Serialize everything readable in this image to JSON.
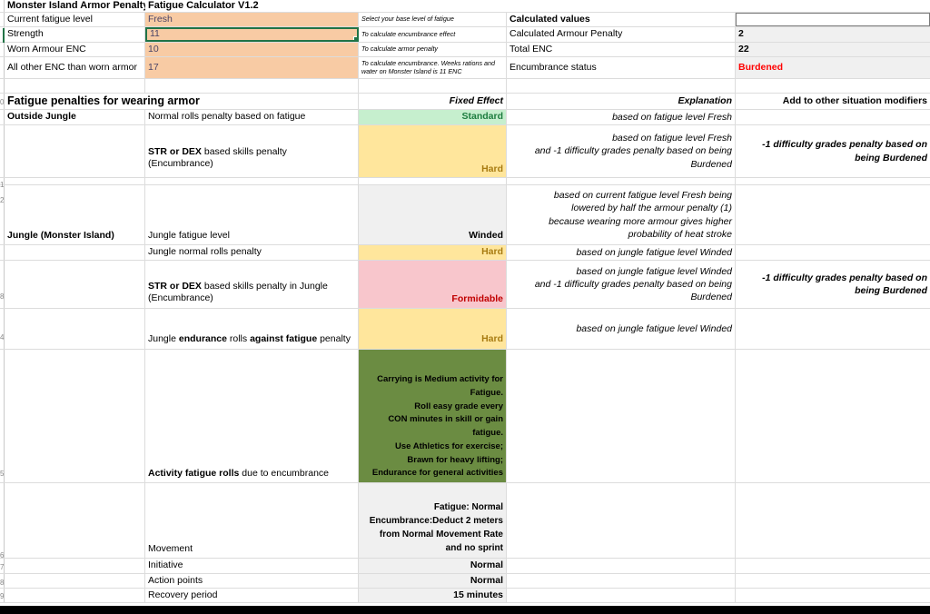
{
  "header": {
    "title_left": "Monster Island Armor Penalty",
    "title_right": "Fatigue Calculator V1.2"
  },
  "inputs": [
    {
      "label": "Current fatigue level",
      "value": "Fresh",
      "note": "Select your base level of fatigue"
    },
    {
      "label": "Strength",
      "value": "11",
      "note": "To calculate encumbrance effect"
    },
    {
      "label": "Worn Armour ENC",
      "value": "10",
      "note": "To calculate armor penalty"
    },
    {
      "label": "All other ENC than worn armor",
      "value": "17",
      "note": "To calculate encumbrance. Weeks rations and\nwater on Monster Island is 11 ENC"
    }
  ],
  "calculated": {
    "title": "Calculated values",
    "rows": [
      {
        "label": "Calculated Armour Penalty",
        "value": "2"
      },
      {
        "label": "Total ENC",
        "value": "22"
      },
      {
        "label": "Encumbrance status",
        "value": "Burdened"
      }
    ]
  },
  "section": {
    "title": "Fatigue penalties for wearing armor",
    "col_effect": "Fixed Effect",
    "col_explanation": "Explanation",
    "col_modifiers": "Add to other situation modifiers"
  },
  "rows": {
    "outside_normal": {
      "group": "Outside Jungle",
      "desc": "Normal rolls penalty based on fatigue",
      "effect": "Standard",
      "explanation": "based on fatigue level Fresh"
    },
    "outside_str": {
      "desc_bold": "STR or DEX",
      "desc_rest": " based skills penalty\n(Encumbrance)",
      "effect": "Hard",
      "explanation": "based on fatigue level Fresh\nand -1 difficulty grades penalty based on being\nBurdened",
      "modifier": "-1 difficulty grades penalty based on\nbeing Burdened"
    },
    "jungle_fatigue": {
      "group": "Jungle (Monster Island)",
      "desc": "Jungle fatigue level",
      "effect": "Winded",
      "explanation": "based on current fatigue level Fresh being\nlowered by half the armour penalty (1)\nbecause wearing more armour gives higher\nprobability of heat stroke"
    },
    "jungle_normal": {
      "desc": "Jungle normal rolls penalty",
      "effect": "Hard",
      "explanation": "based on jungle  fatigue level Winded"
    },
    "jungle_str": {
      "desc_bold": "STR or DEX",
      "desc_rest": " based skills penalty in Jungle\n(Encumbrance)",
      "effect": "Formidable",
      "explanation": "based on jungle fatigue level Winded\nand -1 difficulty grades penalty based on being\nBurdened",
      "modifier": "-1 difficulty grades penalty based on\nbeing Burdened"
    },
    "jungle_endurance": {
      "desc_p1": "Jungle ",
      "desc_b1": "endurance",
      "desc_p2": " rolls ",
      "desc_b2": "against fatigue",
      "desc_p3": " penalty",
      "effect": "Hard",
      "explanation": "based on jungle fatigue level Winded"
    },
    "activity": {
      "desc_bold": "Activity fatigue rolls",
      "desc_rest": " due to encumbrance",
      "effect": "Carrying is Medium activity for\nFatigue.\nRoll easy grade every\nCON minutes in skill or gain\nfatigue.\nUse Athletics for exercise;\nBrawn for heavy lifting;\nEndurance for general activities"
    },
    "movement": {
      "desc": "Movement",
      "effect": "Fatigue: Normal\nEncumbrance:Deduct 2 meters\nfrom Normal Movement Rate\nand no sprint"
    },
    "initiative": {
      "desc": "Initiative",
      "effect": "Normal"
    },
    "action_points": {
      "desc": "Action points",
      "effect": "Normal"
    },
    "recovery": {
      "desc": "Recovery period",
      "effect": "15 minutes"
    }
  },
  "colors": {
    "input_bg": "#F8CBA4",
    "input_text": "#4a4467",
    "good_bg": "#C6EFCE",
    "good_text": "#1d7d3f",
    "warn_bg": "#FFE69C",
    "warn_text": "#a87c12",
    "bad_bg": "#F8C6CC",
    "bad_text": "#C00000",
    "neutral_bg": "#f0f0f0",
    "activity_bg": "#6b8c42",
    "status_red": "#FF0000",
    "selection_green": "#217346"
  },
  "gutter_digits": [
    {
      "t": 108,
      "d": "0"
    },
    {
      "t": 199,
      "d": "1"
    },
    {
      "t": 216,
      "d": "2"
    },
    {
      "t": 322,
      "d": "8"
    },
    {
      "t": 367,
      "d": "4"
    },
    {
      "t": 517,
      "d": "5"
    },
    {
      "t": 607,
      "d": "6"
    },
    {
      "t": 620,
      "d": "7"
    },
    {
      "t": 637,
      "d": "8"
    },
    {
      "t": 652,
      "d": "9"
    }
  ]
}
